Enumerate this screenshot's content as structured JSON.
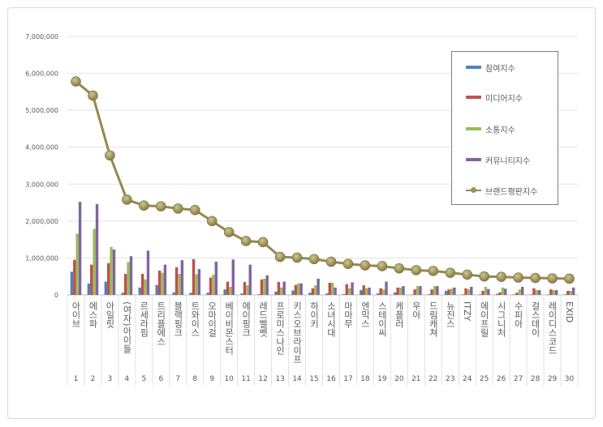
{
  "chart_data": {
    "type": "bar",
    "title": "",
    "xlabel": "",
    "ylabel": "",
    "ylim": [
      0,
      7000000
    ],
    "yticks": [
      "0",
      "1,000,000",
      "2,000,000",
      "3,000,000",
      "4,000,000",
      "5,000,000",
      "6,000,000",
      "7,000,000"
    ],
    "grid": true,
    "legend_position": "top-right",
    "categories": [
      "아이브",
      "에스파",
      "아일릿",
      "(여자)아이들",
      "르세라핌",
      "트리플에스",
      "블랙핑크",
      "트와이스",
      "오마이걸",
      "베이비몬스터",
      "에이핑크",
      "레드벨벳",
      "프로미스나인",
      "키스오브라이프",
      "하이키",
      "소녀시대",
      "마마무",
      "엔믹스",
      "스테이씨",
      "케플러",
      "우아",
      "드림캐쳐",
      "뉴진스",
      "ITZY",
      "에이프릴",
      "시그니처",
      "수피아",
      "걸스데이",
      "레이디스코드",
      "EXID"
    ],
    "ranks": [
      "1",
      "2",
      "3",
      "4",
      "5",
      "6",
      "7",
      "8",
      "9",
      "10",
      "11",
      "12",
      "13",
      "14",
      "15",
      "16",
      "17",
      "18",
      "19",
      "20",
      "21",
      "22",
      "23",
      "24",
      "25",
      "26",
      "27",
      "28",
      "29",
      "30"
    ],
    "series": [
      {
        "name": "참여지수",
        "type": "bar",
        "color": "#4f81bd",
        "values": [
          630000,
          310000,
          360000,
          60000,
          200000,
          270000,
          70000,
          60000,
          60000,
          150000,
          40000,
          20000,
          90000,
          120000,
          60000,
          40000,
          20000,
          130000,
          40000,
          70000,
          10000,
          20000,
          110000,
          15000,
          15000,
          30000,
          15000,
          15000,
          15000,
          15000
        ]
      },
      {
        "name": "미디어지수",
        "type": "bar",
        "color": "#c0504d",
        "values": [
          950000,
          820000,
          860000,
          570000,
          570000,
          660000,
          750000,
          970000,
          470000,
          360000,
          350000,
          420000,
          350000,
          270000,
          180000,
          330000,
          290000,
          260000,
          180000,
          200000,
          150000,
          150000,
          150000,
          180000,
          110000,
          70000,
          60000,
          180000,
          150000,
          110000
        ]
      },
      {
        "name": "소통지수",
        "type": "bar",
        "color": "#9bbb59",
        "values": [
          1660000,
          1790000,
          1300000,
          890000,
          420000,
          600000,
          570000,
          560000,
          550000,
          220000,
          260000,
          440000,
          200000,
          310000,
          260000,
          330000,
          180000,
          180000,
          150000,
          200000,
          240000,
          240000,
          170000,
          150000,
          220000,
          200000,
          150000,
          130000,
          130000,
          110000
        ]
      },
      {
        "name": "커뮤니티지수",
        "type": "bar",
        "color": "#8064a2",
        "values": [
          2520000,
          2460000,
          1230000,
          1050000,
          1200000,
          820000,
          940000,
          700000,
          900000,
          960000,
          820000,
          530000,
          360000,
          310000,
          440000,
          200000,
          340000,
          200000,
          360000,
          240000,
          240000,
          240000,
          200000,
          220000,
          160000,
          170000,
          220000,
          130000,
          130000,
          200000
        ]
      },
      {
        "name": "브랜드평판지수",
        "type": "line",
        "color": "#938953",
        "values": [
          5780000,
          5400000,
          3780000,
          2580000,
          2420000,
          2400000,
          2340000,
          2300000,
          2000000,
          1700000,
          1460000,
          1430000,
          1030000,
          1010000,
          970000,
          900000,
          840000,
          800000,
          780000,
          720000,
          670000,
          650000,
          600000,
          550000,
          500000,
          490000,
          470000,
          460000,
          450000,
          440000
        ]
      }
    ]
  }
}
